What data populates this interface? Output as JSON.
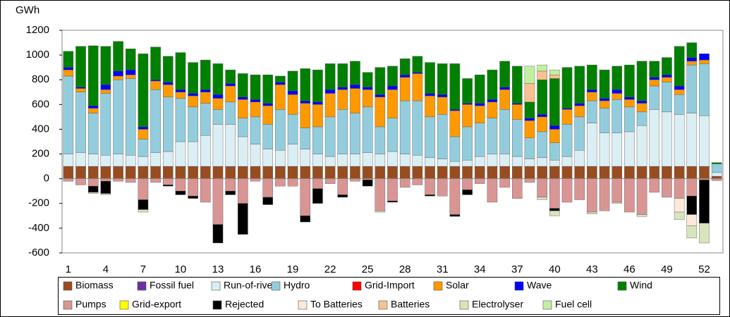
{
  "chart_data": {
    "type": "bar",
    "stacked": true,
    "y_label": "GWh",
    "categories": [
      "1",
      null,
      null,
      "4",
      null,
      null,
      "7",
      null,
      null,
      "10",
      null,
      null,
      "13",
      null,
      null,
      "16",
      null,
      null,
      "19",
      null,
      null,
      "22",
      null,
      null,
      "25",
      null,
      null,
      "28",
      null,
      null,
      "31",
      null,
      null,
      "34",
      null,
      null,
      "37",
      null,
      null,
      "40",
      null,
      null,
      "43",
      null,
      null,
      "46",
      null,
      null,
      "49",
      null,
      null,
      "52",
      null
    ],
    "ylim": [
      -600,
      1200
    ],
    "yticks": [
      -600,
      -400,
      -200,
      0,
      200,
      400,
      600,
      800,
      1000,
      1200
    ],
    "grid": false,
    "legend": "bottom",
    "series": [
      {
        "name": "Biomass",
        "color": "#994c1f",
        "values": [
          100,
          100,
          100,
          100,
          100,
          100,
          100,
          100,
          100,
          100,
          100,
          100,
          100,
          100,
          100,
          100,
          100,
          100,
          100,
          100,
          100,
          100,
          100,
          100,
          100,
          100,
          100,
          100,
          100,
          100,
          100,
          100,
          100,
          100,
          100,
          100,
          100,
          100,
          100,
          100,
          100,
          100,
          100,
          100,
          100,
          100,
          100,
          100,
          100,
          100,
          100,
          100,
          20
        ]
      },
      {
        "name": "Fossil fuel",
        "color": "#7030a0",
        "values": [
          0,
          0,
          0,
          0,
          0,
          0,
          0,
          0,
          0,
          0,
          0,
          0,
          0,
          0,
          0,
          0,
          0,
          0,
          0,
          0,
          0,
          0,
          0,
          0,
          0,
          0,
          0,
          0,
          0,
          0,
          0,
          0,
          0,
          0,
          0,
          0,
          0,
          0,
          0,
          0,
          0,
          0,
          0,
          0,
          0,
          0,
          0,
          0,
          0,
          0,
          0,
          0,
          0
        ]
      },
      {
        "name": "Run-of-river",
        "color": "#dbeef4",
        "values": [
          100,
          110,
          100,
          90,
          100,
          90,
          80,
          110,
          120,
          200,
          200,
          250,
          340,
          340,
          240,
          180,
          140,
          130,
          180,
          140,
          100,
          80,
          100,
          100,
          110,
          100,
          120,
          100,
          90,
          70,
          60,
          40,
          50,
          80,
          100,
          100,
          80,
          60,
          70,
          50,
          80,
          130,
          350,
          270,
          270,
          280,
          330,
          460,
          440,
          420,
          430,
          410,
          30
        ]
      },
      {
        "name": "Hydro",
        "color": "#93cddd",
        "values": [
          630,
          490,
          330,
          500,
          600,
          620,
          140,
          510,
          440,
          350,
          280,
          260,
          120,
          180,
          150,
          220,
          200,
          330,
          240,
          170,
          220,
          320,
          360,
          330,
          370,
          220,
          270,
          430,
          440,
          330,
          360,
          200,
          270,
          270,
          290,
          360,
          300,
          170,
          210,
          140,
          260,
          270,
          180,
          200,
          270,
          200,
          110,
          190,
          240,
          160,
          390,
          420,
          70
        ]
      },
      {
        "name": "Grid-Import",
        "color": "#ff0000",
        "values": [
          0,
          0,
          0,
          0,
          0,
          0,
          0,
          0,
          0,
          0,
          0,
          0,
          0,
          0,
          0,
          0,
          0,
          0,
          0,
          0,
          0,
          0,
          0,
          0,
          0,
          0,
          0,
          0,
          0,
          0,
          0,
          0,
          0,
          0,
          0,
          0,
          0,
          0,
          0,
          0,
          0,
          0,
          0,
          0,
          0,
          0,
          0,
          0,
          0,
          0,
          0,
          0,
          0
        ]
      },
      {
        "name": "Solar",
        "color": "#ff9900",
        "values": [
          50,
          30,
          40,
          30,
          30,
          30,
          80,
          70,
          100,
          50,
          90,
          90,
          90,
          130,
          150,
          120,
          150,
          200,
          160,
          200,
          180,
          190,
          160,
          200,
          140,
          240,
          230,
          190,
          220,
          170,
          140,
          210,
          180,
          140,
          130,
          160,
          120,
          140,
          120,
          110,
          120,
          90,
          70,
          60,
          50,
          60,
          70,
          50,
          40,
          40,
          30,
          30,
          0
        ]
      },
      {
        "name": "Wave",
        "color": "#0000ff",
        "values": [
          20,
          10,
          20,
          40,
          40,
          40,
          20,
          10,
          20,
          20,
          20,
          20,
          30,
          20,
          20,
          20,
          20,
          20,
          30,
          20,
          20,
          30,
          20,
          30,
          20,
          20,
          30,
          20,
          10,
          20,
          20,
          10,
          10,
          20,
          20,
          20,
          10,
          20,
          20,
          30,
          10,
          20,
          20,
          20,
          30,
          20,
          20,
          20,
          20,
          30,
          30,
          50,
          0
        ]
      },
      {
        "name": "Wind",
        "color": "#008000",
        "values": [
          130,
          330,
          485,
          310,
          240,
          170,
          590,
          265,
          210,
          300,
          250,
          240,
          250,
          110,
          190,
          200,
          230,
          50,
          160,
          260,
          260,
          210,
          190,
          190,
          120,
          220,
          160,
          130,
          130,
          250,
          250,
          370,
          200,
          230,
          240,
          210,
          300,
          130,
          280,
          380,
          330,
          300,
          200,
          230,
          190,
          260,
          320,
          130,
          140,
          320,
          120,
          0,
          10
        ]
      },
      {
        "name": "Pumps",
        "color": "#d99594",
        "values": [
          -20,
          -50,
          -60,
          -20,
          -20,
          -30,
          -170,
          -30,
          -50,
          -100,
          -140,
          -190,
          -370,
          -100,
          -200,
          -20,
          -150,
          -60,
          -60,
          -300,
          -80,
          -40,
          -130,
          -20,
          -10,
          -260,
          -180,
          -70,
          -50,
          -130,
          -140,
          -290,
          -90,
          -40,
          -190,
          -70,
          -160,
          -30,
          -150,
          -240,
          -190,
          -170,
          -270,
          -260,
          -190,
          -270,
          -290,
          -110,
          -150,
          -160,
          -140,
          -10,
          -15
        ]
      },
      {
        "name": "Grid-export",
        "color": "#ffff00",
        "values": [
          0,
          0,
          0,
          0,
          0,
          0,
          0,
          0,
          0,
          0,
          0,
          0,
          0,
          0,
          0,
          0,
          0,
          0,
          0,
          0,
          0,
          0,
          0,
          0,
          0,
          0,
          0,
          0,
          0,
          0,
          0,
          0,
          0,
          0,
          0,
          0,
          0,
          0,
          0,
          0,
          0,
          0,
          0,
          0,
          0,
          0,
          0,
          0,
          0,
          0,
          0,
          0,
          0
        ]
      },
      {
        "name": "Rejected",
        "color": "#000000",
        "values": [
          0,
          0,
          -50,
          -100,
          0,
          0,
          -80,
          0,
          -10,
          -30,
          -20,
          0,
          -150,
          -30,
          -250,
          0,
          -60,
          0,
          0,
          -50,
          -120,
          0,
          -20,
          0,
          -50,
          0,
          -10,
          0,
          0,
          -10,
          0,
          -15,
          -40,
          0,
          0,
          0,
          0,
          0,
          0,
          -20,
          0,
          0,
          0,
          0,
          0,
          0,
          0,
          0,
          0,
          0,
          -150,
          -350,
          0
        ]
      },
      {
        "name": "To Batteries",
        "color": "#fde9d9",
        "values": [
          0,
          0,
          0,
          0,
          0,
          0,
          0,
          0,
          0,
          0,
          0,
          0,
          0,
          0,
          0,
          0,
          0,
          0,
          0,
          0,
          0,
          0,
          0,
          0,
          0,
          0,
          0,
          0,
          0,
          0,
          0,
          0,
          0,
          0,
          0,
          0,
          0,
          0,
          0,
          0,
          0,
          0,
          0,
          0,
          0,
          0,
          0,
          0,
          0,
          -110,
          -90,
          0,
          0
        ]
      },
      {
        "name": "Batteries",
        "color": "#fac090",
        "values": [
          0,
          0,
          0,
          0,
          0,
          0,
          0,
          0,
          0,
          0,
          0,
          0,
          0,
          0,
          0,
          0,
          0,
          0,
          0,
          0,
          0,
          0,
          0,
          0,
          0,
          0,
          0,
          0,
          0,
          0,
          0,
          0,
          0,
          0,
          0,
          0,
          0,
          150,
          70,
          30,
          0,
          0,
          0,
          0,
          0,
          0,
          0,
          0,
          0,
          0,
          0,
          0,
          0
        ]
      },
      {
        "name": "Electrolyser",
        "color": "#d7e4bc",
        "values": [
          0,
          0,
          -10,
          -10,
          0,
          0,
          -20,
          0,
          0,
          0,
          0,
          0,
          0,
          0,
          0,
          0,
          0,
          0,
          0,
          0,
          0,
          0,
          0,
          0,
          0,
          -10,
          0,
          0,
          0,
          0,
          0,
          0,
          0,
          0,
          0,
          0,
          0,
          0,
          -20,
          -40,
          0,
          0,
          -15,
          0,
          -10,
          0,
          -15,
          0,
          0,
          -60,
          -100,
          -160,
          0
        ]
      },
      {
        "name": "Fuel cell",
        "color": "#c2f0a0",
        "values": [
          0,
          0,
          0,
          0,
          0,
          0,
          0,
          0,
          0,
          0,
          0,
          0,
          0,
          0,
          0,
          0,
          0,
          0,
          0,
          0,
          0,
          0,
          0,
          0,
          0,
          0,
          0,
          0,
          0,
          0,
          0,
          0,
          0,
          0,
          0,
          0,
          0,
          140,
          50,
          40,
          0,
          0,
          0,
          0,
          0,
          0,
          0,
          0,
          0,
          0,
          0,
          0,
          0
        ]
      }
    ]
  }
}
